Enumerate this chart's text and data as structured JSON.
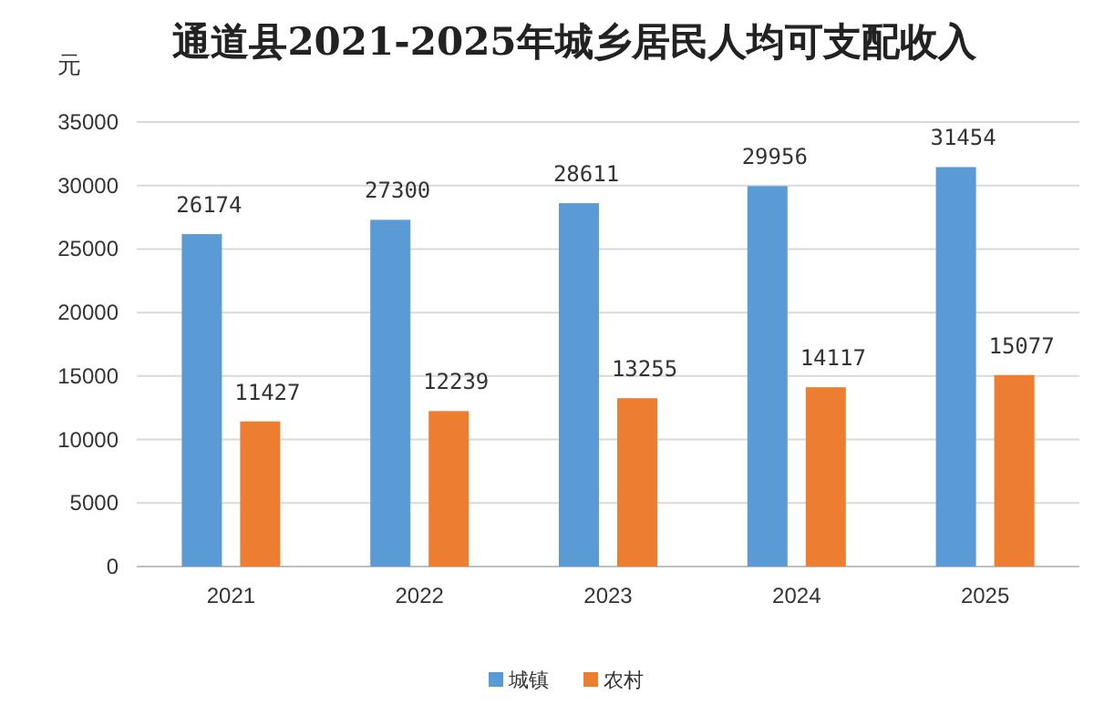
{
  "chart_data": {
    "type": "bar",
    "title": "通道县2021-2025年城乡居民人均可支配收入",
    "ylabel": "元",
    "categories": [
      "2021",
      "2022",
      "2023",
      "2024",
      "2025"
    ],
    "series": [
      {
        "name": "城镇",
        "color": "#5b9bd5",
        "values": [
          26174,
          27300,
          28611,
          29956,
          31454
        ]
      },
      {
        "name": "农村",
        "color": "#ed7d31",
        "values": [
          11427,
          12239,
          13255,
          14117,
          15077
        ]
      }
    ],
    "ylim": [
      0,
      35000
    ],
    "yticks": [
      0,
      5000,
      10000,
      15000,
      20000,
      25000,
      30000,
      35000
    ],
    "grid": "y",
    "legend": "bottom",
    "data_labels": true
  }
}
